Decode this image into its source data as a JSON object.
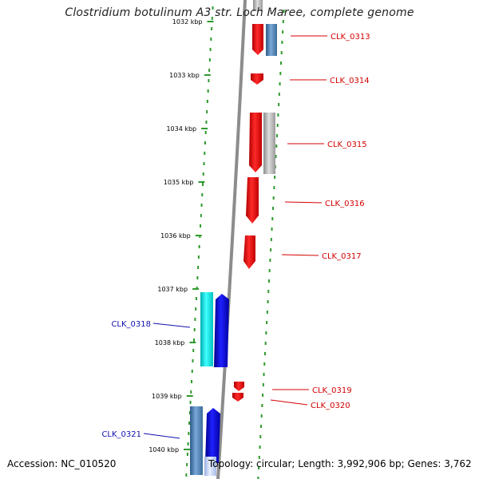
{
  "title": "Clostridium botulinum A3 str. Loch Maree, complete genome",
  "footer": {
    "accession": "Accession: NC_010520",
    "summary": "Topology: circular; Length: 3,992,906 bp; Genes: 3,762"
  },
  "colors": {
    "backbone": "#9a9a9a",
    "tick_dots": "#2e9a2e",
    "reverse_gene_label": "#d40000",
    "forward_gene_label": "#1010b0"
  },
  "scale_labels": [
    "1032 kbp",
    "1033 kbp",
    "1034 kbp",
    "1035 kbp",
    "1036 kbp",
    "1037 kbp",
    "1038 kbp",
    "1039 kbp",
    "1040 kbp"
  ],
  "genes": [
    {
      "label": "CLK_0313",
      "strand": "reverse",
      "color": "#ff0000"
    },
    {
      "label": "CLK_0314",
      "strand": "reverse",
      "color": "#ff0000"
    },
    {
      "label": "CLK_0315",
      "strand": "reverse",
      "color": "#ff0000"
    },
    {
      "label": "CLK_0316",
      "strand": "reverse",
      "color": "#ff0000"
    },
    {
      "label": "CLK_0317",
      "strand": "reverse",
      "color": "#ff0000"
    },
    {
      "label": "CLK_0318",
      "strand": "forward",
      "color": "#00e0e0"
    },
    {
      "label": "CLK_0319",
      "strand": "reverse",
      "color": "#ff0000"
    },
    {
      "label": "CLK_0320",
      "strand": "reverse",
      "color": "#ff0000"
    },
    {
      "label": "CLK_0321",
      "strand": "forward",
      "color": "#4682b4"
    }
  ]
}
